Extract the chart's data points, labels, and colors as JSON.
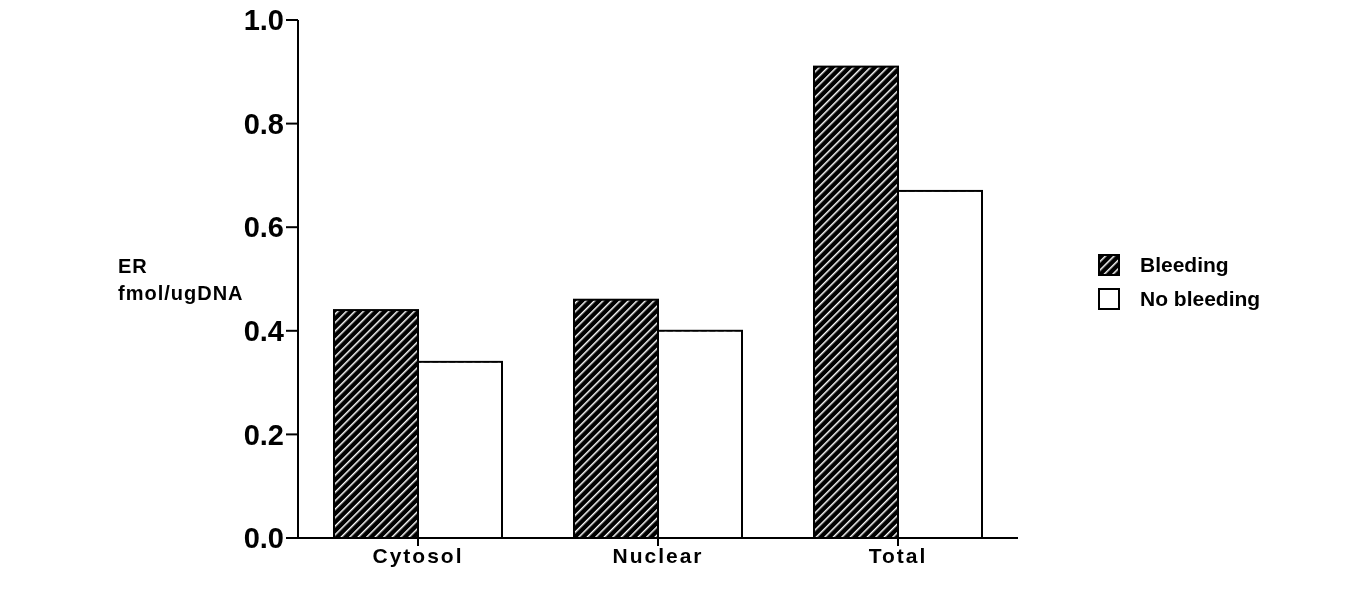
{
  "chart_data": {
    "type": "bar",
    "ylabel": "ER fmol/ugDNA",
    "categories": [
      "Cytosol",
      "Nuclear",
      "Total"
    ],
    "series": [
      {
        "name": "Bleeding",
        "color": "#000000",
        "values": [
          0.44,
          0.46,
          0.91
        ]
      },
      {
        "name": "No bleeding",
        "color": "#ffffff",
        "values": [
          0.34,
          0.4,
          0.67
        ]
      }
    ],
    "ylim": [
      0,
      1
    ],
    "yticks": [
      {
        "value": 0,
        "label": "0.0"
      },
      {
        "value": 0.2,
        "label": "0.2"
      },
      {
        "value": 0.4,
        "label": "0.4"
      },
      {
        "value": 0.6,
        "label": "0.6"
      },
      {
        "value": 0.8,
        "label": "0.8"
      },
      {
        "value": 1,
        "label": "1.0"
      }
    ],
    "grid": false,
    "legend": "right"
  }
}
